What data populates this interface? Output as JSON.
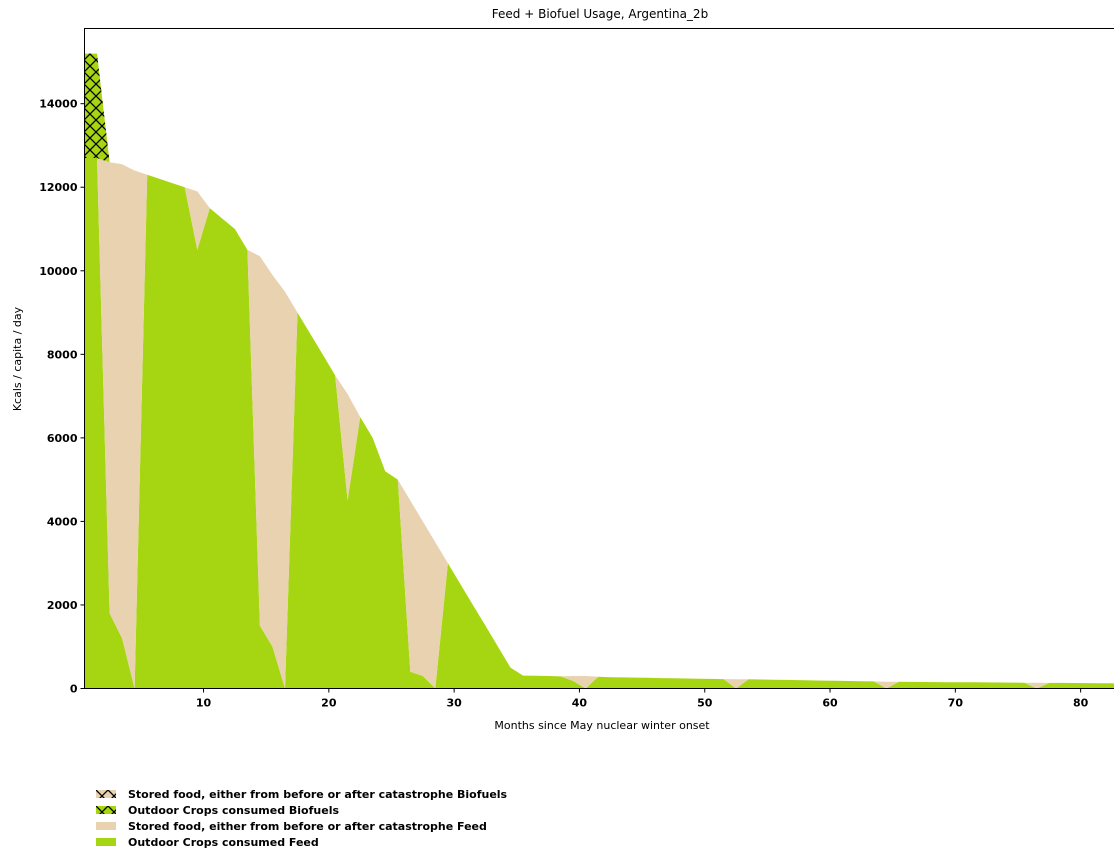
{
  "chart_data": {
    "type": "area",
    "stacked": true,
    "title": "Feed + Biofuel Usage, Argentina_2b",
    "xlabel": "Months since May nuclear winter onset",
    "ylabel": "Kcals / capita / day",
    "xlim": [
      0.5,
      83.5
    ],
    "ylim": [
      0,
      15800
    ],
    "xticks": [
      10,
      20,
      30,
      40,
      50,
      60,
      70,
      80
    ],
    "yticks": [
      0,
      2000,
      4000,
      6000,
      8000,
      10000,
      12000,
      14000
    ],
    "grid": false,
    "legend_placement": "below",
    "colors": {
      "outdoor": "#a6d612",
      "stored": "#e8d2b0",
      "hatch": "#000000"
    },
    "x": [
      0.5,
      1.5,
      2.5,
      3.5,
      4.5,
      5.5,
      6.5,
      7.5,
      8.5,
      9.5,
      10.5,
      11.5,
      12.5,
      13.5,
      14.5,
      15.5,
      16.5,
      17.5,
      18.5,
      19.5,
      20.5,
      21.5,
      22.5,
      23.5,
      24.5,
      25.5,
      26.5,
      27.5,
      28.5,
      29.5,
      30.5,
      31.5,
      32.5,
      33.5,
      34.5,
      35.5,
      36.5,
      37.5,
      38.5,
      39.5,
      40.5,
      41.5,
      42.5,
      43.5,
      44.5,
      45.5,
      46.5,
      47.5,
      48.5,
      49.5,
      50.5,
      51.5,
      52.5,
      53.5,
      54.5,
      55.5,
      56.5,
      57.5,
      58.5,
      59.5,
      60.5,
      61.5,
      62.5,
      63.5,
      64.5,
      65.5,
      66.5,
      67.5,
      68.5,
      69.5,
      70.5,
      71.5,
      72.5,
      73.5,
      74.5,
      75.5,
      76.5,
      77.5,
      78.5,
      79.5,
      80.5,
      81.5,
      82.5,
      83.5
    ],
    "series": [
      {
        "name": "Outdoor Crops consumed Feed",
        "values": [
          12700,
          12700,
          1800,
          1200,
          0,
          12300,
          12200,
          12100,
          12000,
          10500,
          11500,
          11250,
          11000,
          10500,
          1500,
          1000,
          0,
          9000,
          8500,
          8000,
          7500,
          4500,
          6500,
          6000,
          5200,
          5000,
          400,
          300,
          0,
          3000,
          2500,
          2000,
          1500,
          1000,
          500,
          310,
          305,
          300,
          290,
          180,
          0,
          280,
          270,
          265,
          260,
          255,
          250,
          245,
          240,
          235,
          230,
          225,
          0,
          220,
          215,
          210,
          205,
          200,
          195,
          190,
          185,
          180,
          175,
          170,
          0,
          160,
          158,
          156,
          154,
          152,
          150,
          148,
          146,
          144,
          142,
          140,
          0,
          135,
          133,
          131,
          129,
          127,
          125,
          123
        ]
      },
      {
        "name": "Stored food, either from before or after catastrophe Feed",
        "values": [
          0,
          0,
          10800,
          11350,
          12400,
          0,
          0,
          0,
          0,
          1400,
          0,
          0,
          0,
          0,
          8850,
          8900,
          9500,
          0,
          0,
          0,
          0,
          2550,
          0,
          0,
          0,
          0,
          4100,
          3700,
          3500,
          0,
          0,
          0,
          0,
          0,
          0,
          0,
          0,
          0,
          0,
          120,
          300,
          0,
          0,
          0,
          0,
          0,
          0,
          0,
          0,
          0,
          0,
          0,
          220,
          0,
          0,
          0,
          0,
          0,
          0,
          0,
          0,
          0,
          0,
          0,
          160,
          0,
          0,
          0,
          0,
          0,
          0,
          0,
          0,
          0,
          0,
          0,
          140,
          0,
          0,
          0,
          0,
          0,
          0,
          0
        ]
      },
      {
        "name": "Outdoor Crops consumed Biofuels",
        "values": [
          2500,
          2500,
          0,
          0,
          0,
          0,
          0,
          0,
          0,
          0,
          0,
          0,
          0,
          0,
          0,
          0,
          0,
          0,
          0,
          0,
          0,
          0,
          0,
          0,
          0,
          0,
          0,
          0,
          0,
          0,
          0,
          0,
          0,
          0,
          0,
          0,
          0,
          0,
          0,
          0,
          0,
          0,
          0,
          0,
          0,
          0,
          0,
          0,
          0,
          0,
          0,
          0,
          0,
          0,
          0,
          0,
          0,
          0,
          0,
          0,
          0,
          0,
          0,
          0,
          0,
          0,
          0,
          0,
          0,
          0,
          0,
          0,
          0,
          0,
          0,
          0,
          0,
          0,
          0,
          0,
          0,
          0,
          0,
          0
        ]
      },
      {
        "name": "Stored food, either from before or after catastrophe Biofuels",
        "values": [
          0,
          0,
          0,
          0,
          0,
          0,
          0,
          0,
          0,
          0,
          0,
          0,
          0,
          0,
          0,
          0,
          0,
          0,
          0,
          0,
          0,
          0,
          0,
          0,
          0,
          0,
          0,
          0,
          0,
          0,
          0,
          0,
          0,
          0,
          0,
          0,
          0,
          0,
          0,
          0,
          0,
          0,
          0,
          0,
          0,
          0,
          0,
          0,
          0,
          0,
          0,
          0,
          0,
          0,
          0,
          0,
          0,
          0,
          0,
          0,
          0,
          0,
          0,
          0,
          0,
          0,
          0,
          0,
          0,
          0,
          0,
          0,
          0,
          0,
          0,
          0,
          0,
          0,
          0,
          0,
          0,
          0,
          0,
          0
        ]
      }
    ],
    "legend": [
      {
        "label": "Stored food, either from before or after catastrophe Biofuels",
        "color": "#e8d2b0",
        "hatch": true
      },
      {
        "label": "Outdoor Crops consumed Biofuels",
        "color": "#a6d612",
        "hatch": true
      },
      {
        "label": "Stored food, either from before or after catastrophe Feed",
        "color": "#e8d2b0",
        "hatch": false
      },
      {
        "label": "Outdoor Crops consumed Feed",
        "color": "#a6d612",
        "hatch": false
      }
    ]
  }
}
